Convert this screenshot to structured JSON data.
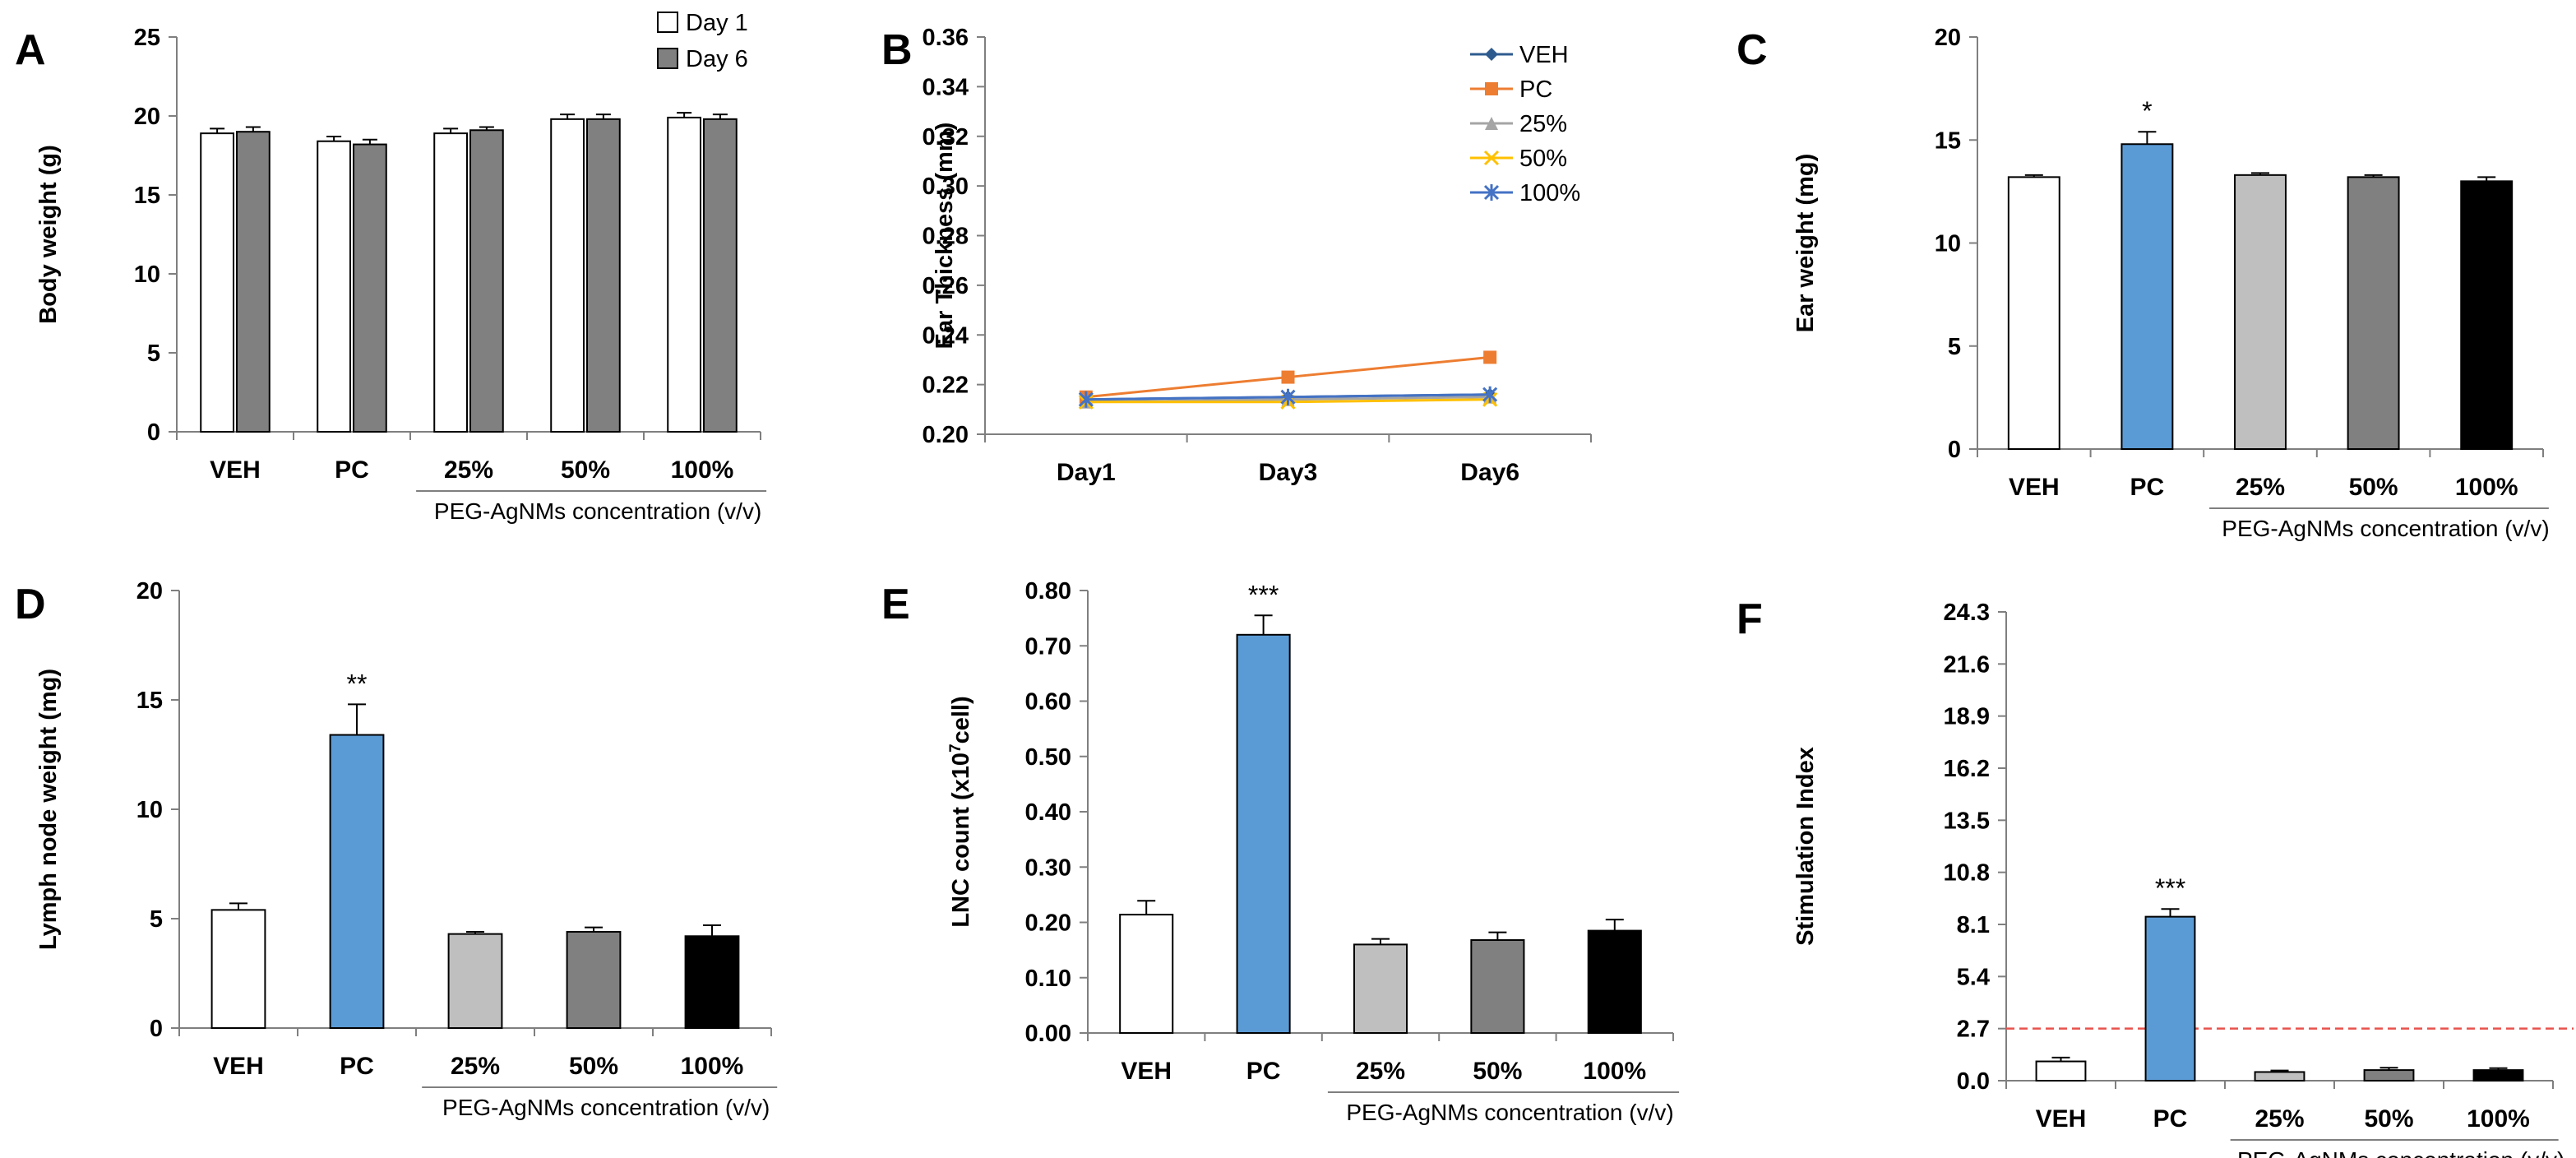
{
  "chart_data": [
    {
      "panel": "A",
      "type": "bar",
      "ylabel": "Body weight (g)",
      "ylim": [
        0,
        25
      ],
      "yticks": [
        "0",
        "5",
        "10",
        "15",
        "20",
        "25"
      ],
      "categories": [
        "VEH",
        "PC",
        "25%",
        "50%",
        "100%"
      ],
      "group_label": "PEG-AgNMs concentration (v/v)",
      "legend": "top-right",
      "series": [
        {
          "name": "Day 1",
          "color": "#ffffff",
          "values": [
            18.9,
            18.4,
            18.9,
            19.8,
            19.9
          ],
          "errors": [
            0.3,
            0.3,
            0.3,
            0.3,
            0.3
          ]
        },
        {
          "name": "Day 6",
          "color": "#808080",
          "values": [
            19.0,
            18.2,
            19.1,
            19.8,
            19.8
          ],
          "errors": [
            0.3,
            0.3,
            0.2,
            0.3,
            0.3
          ]
        }
      ]
    },
    {
      "panel": "B",
      "type": "line",
      "ylabel": "Ear Thickness (mm)",
      "ylim": [
        0.2,
        0.36
      ],
      "yticks": [
        "0.20",
        "0.22",
        "0.24",
        "0.26",
        "0.28",
        "0.30",
        "0.32",
        "0.34",
        "0.36"
      ],
      "categories": [
        "Day1",
        "Day3",
        "Day6"
      ],
      "legend": "top-right",
      "series": [
        {
          "name": "VEH",
          "color": "#2e5b8f",
          "marker": "diamond",
          "values": [
            0.214,
            0.215,
            0.216
          ]
        },
        {
          "name": "PC",
          "color": "#ed7d31",
          "marker": "square",
          "values": [
            0.215,
            0.223,
            0.231
          ]
        },
        {
          "name": "25%",
          "color": "#a5a5a5",
          "marker": "triangle",
          "values": [
            0.213,
            0.214,
            0.215
          ]
        },
        {
          "name": "50%",
          "color": "#ffc000",
          "marker": "x",
          "values": [
            0.213,
            0.213,
            0.214
          ]
        },
        {
          "name": "100%",
          "color": "#4472c4",
          "marker": "star",
          "values": [
            0.214,
            0.215,
            0.216
          ]
        }
      ]
    },
    {
      "panel": "C",
      "type": "bar",
      "ylabel": "Ear weight (mg)",
      "ylim": [
        0,
        20
      ],
      "yticks": [
        "0",
        "5",
        "10",
        "15",
        "20"
      ],
      "categories": [
        "VEH",
        "PC",
        "25%",
        "50%",
        "100%"
      ],
      "group_label": "PEG-AgNMs concentration (v/v)",
      "values": [
        13.2,
        14.8,
        13.3,
        13.2,
        13.0
      ],
      "errors": [
        0.1,
        0.6,
        0.1,
        0.1,
        0.2
      ],
      "colors": [
        "#ffffff",
        "#5b9bd5",
        "#bfbfbf",
        "#808080",
        "#000000"
      ],
      "annotations": [
        "",
        "*",
        "",
        "",
        ""
      ]
    },
    {
      "panel": "D",
      "type": "bar",
      "ylabel": "Lymph node weight (mg)",
      "ylim": [
        0,
        20
      ],
      "yticks": [
        "0",
        "5",
        "10",
        "15",
        "20"
      ],
      "categories": [
        "VEH",
        "PC",
        "25%",
        "50%",
        "100%"
      ],
      "group_label": "PEG-AgNMs concentration (v/v)",
      "values": [
        5.4,
        13.4,
        4.3,
        4.4,
        4.2
      ],
      "errors": [
        0.3,
        1.4,
        0.1,
        0.2,
        0.5
      ],
      "colors": [
        "#ffffff",
        "#5b9bd5",
        "#bfbfbf",
        "#808080",
        "#000000"
      ],
      "annotations": [
        "",
        "**",
        "",
        "",
        ""
      ]
    },
    {
      "panel": "E",
      "type": "bar",
      "ylabel_parts": [
        "LNC count (x10",
        "7",
        "cell)"
      ],
      "ylim": [
        0,
        0.8
      ],
      "yticks": [
        "0.00",
        "0.10",
        "0.20",
        "0.30",
        "0.40",
        "0.50",
        "0.60",
        "0.70",
        "0.80"
      ],
      "categories": [
        "VEH",
        "PC",
        "25%",
        "50%",
        "100%"
      ],
      "group_label": "PEG-AgNMs concentration (v/v)",
      "values": [
        0.214,
        0.72,
        0.16,
        0.168,
        0.185
      ],
      "errors": [
        0.025,
        0.035,
        0.01,
        0.014,
        0.02
      ],
      "colors": [
        "#ffffff",
        "#5b9bd5",
        "#bfbfbf",
        "#808080",
        "#000000"
      ],
      "annotations": [
        "",
        "***",
        "",
        "",
        ""
      ]
    },
    {
      "panel": "F",
      "type": "bar",
      "ylabel": "Stimulation Index",
      "ylim": [
        0,
        24.3
      ],
      "yticks": [
        "0.0",
        "2.7",
        "5.4",
        "8.1",
        "10.8",
        "13.5",
        "16.2",
        "18.9",
        "21.6",
        "24.3"
      ],
      "categories": [
        "VEH",
        "PC",
        "25%",
        "50%",
        "100%"
      ],
      "group_label": "PEG-AgNMs concentration (v/v)",
      "values": [
        1.0,
        8.5,
        0.45,
        0.55,
        0.55
      ],
      "errors": [
        0.2,
        0.4,
        0.08,
        0.12,
        0.1
      ],
      "colors": [
        "#ffffff",
        "#5b9bd5",
        "#bfbfbf",
        "#808080",
        "#000000"
      ],
      "annotations": [
        "",
        "***",
        "",
        "",
        ""
      ],
      "reference_line": {
        "value": 2.7,
        "color": "#e8534d"
      }
    }
  ]
}
